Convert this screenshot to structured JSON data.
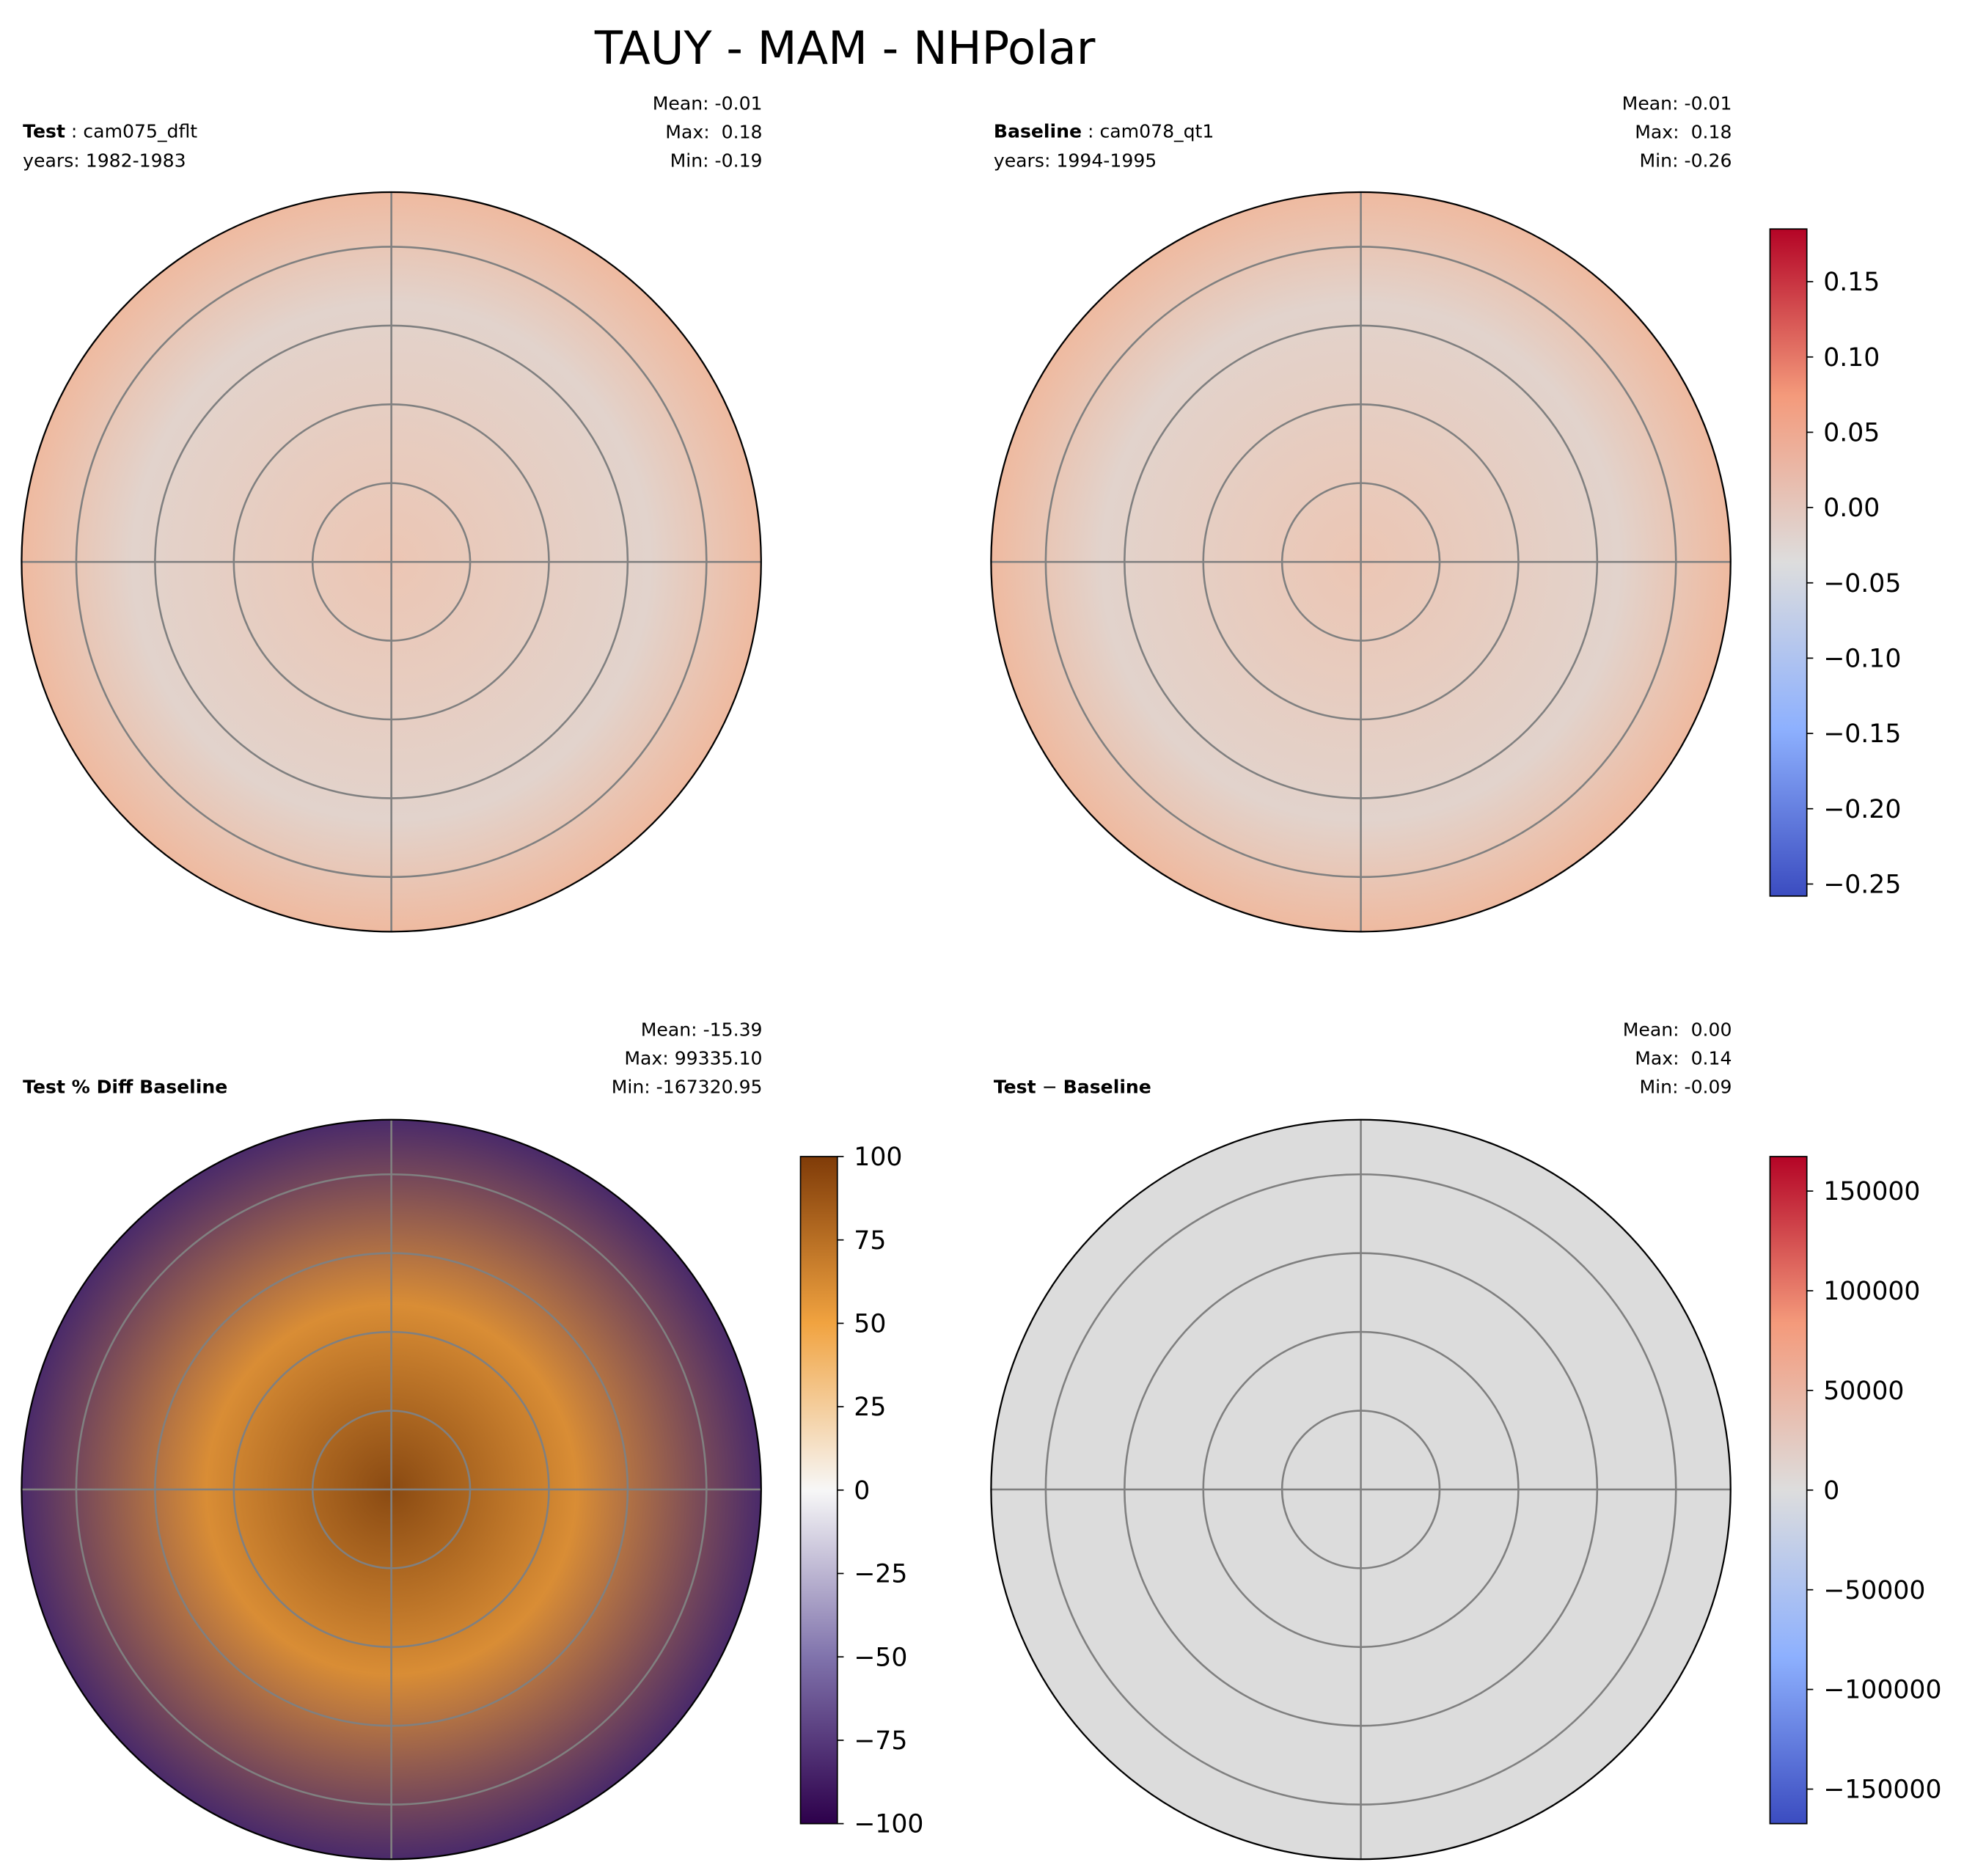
{
  "title": "TAUY - MAM - NHPolar",
  "panels": [
    {
      "label_parts": [
        {
          "text": "Test",
          "bold": true
        },
        {
          "text": " : cam075_dflt",
          "bold": false
        }
      ],
      "years": "years: 1982-1983",
      "stats": [
        "Mean: -0.01",
        "Max:  0.18",
        "Min: -0.19"
      ]
    },
    {
      "label_parts": [
        {
          "text": "Baseline",
          "bold": true
        },
        {
          "text": " : cam078_qt1",
          "bold": false
        }
      ],
      "years": "years: 1994-1995",
      "stats": [
        "Mean: -0.01",
        "Max:  0.18",
        "Min: -0.26"
      ]
    },
    {
      "label_parts": [
        {
          "text": "Test % Diff Baseline",
          "bold": true
        }
      ],
      "stats": [
        "Mean: -15.39",
        "Max: 99335.10",
        "Min: -167320.95"
      ]
    },
    {
      "label_parts": [
        {
          "text": "Test",
          "bold": true
        },
        {
          "text": " − ",
          "bold": false
        },
        {
          "text": "Baseline",
          "bold": true
        }
      ],
      "stats": [
        "Mean:  0.00",
        "Max:  0.14",
        "Min: -0.09"
      ]
    }
  ],
  "colorbars": [
    {
      "lim": [
        -0.258,
        0.185
      ],
      "ticks": [
        {
          "value": -0.25,
          "label": "−0.25"
        },
        {
          "value": -0.2,
          "label": "−0.20"
        },
        {
          "value": -0.15,
          "label": "−0.15"
        },
        {
          "value": -0.1,
          "label": "−0.10"
        },
        {
          "value": -0.05,
          "label": "−0.05"
        },
        {
          "value": 0,
          "label": "0.00"
        },
        0.05,
        {
          "value": 0.1,
          "label": "0.10"
        },
        0.15
      ]
    },
    {
      "lim": [
        -100,
        100
      ],
      "ticks": [
        {
          "value": -100,
          "label": "−100"
        },
        {
          "value": -75,
          "label": "−75"
        },
        {
          "value": -50,
          "label": "−50"
        },
        {
          "value": -25,
          "label": "−25"
        },
        0,
        25,
        50,
        75,
        100
      ]
    },
    {
      "lim": [
        -167321,
        167321
      ],
      "ticks": [
        {
          "value": -150000,
          "label": "−150000"
        },
        {
          "value": -100000,
          "label": "−100000"
        },
        {
          "value": -50000,
          "label": "−50000"
        },
        0,
        50000,
        100000,
        150000
      ]
    }
  ]
}
